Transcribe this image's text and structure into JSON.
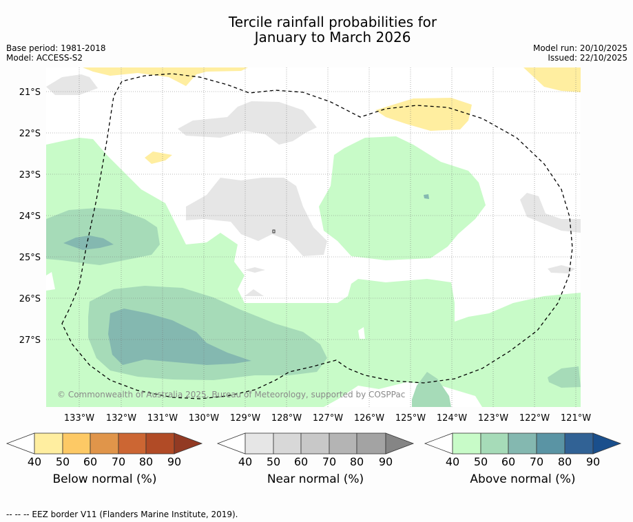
{
  "title": {
    "line1": "Tercile rainfall probabilities for",
    "line2": "January to March 2026"
  },
  "meta": {
    "base_period": "Base period: 1981-2018",
    "model": "Model: ACCESS-S2",
    "model_run": "Model run: 20/10/2025",
    "issued": "Issued: 22/10/2025"
  },
  "map": {
    "copyright": "© Commonwealth of Australia 2025, Bureau of Meteorology, supported by COSPPac",
    "lat_labels": [
      "21°S",
      "22°S",
      "23°S",
      "24°S",
      "25°S",
      "26°S",
      "27°S"
    ],
    "lon_labels": [
      "133°W",
      "132°W",
      "131°W",
      "130°W",
      "129°W",
      "128°W",
      "127°W",
      "126°W",
      "125°W",
      "124°W",
      "123°W",
      "122°W",
      "121°W"
    ],
    "lat_range": [
      -28.5,
      -20.4
    ],
    "lon_range": [
      -133.8,
      -120.9
    ]
  },
  "colorbars": {
    "ticks": [
      "40",
      "50",
      "60",
      "70",
      "80",
      "90"
    ],
    "below": {
      "label": "Below normal (%)",
      "colors": [
        "#ffeea0",
        "#fdc965",
        "#e0954a",
        "#cc6633",
        "#b14b26",
        "#923a23"
      ]
    },
    "near": {
      "label": "Near normal (%)",
      "colors": [
        "#e6e6e6",
        "#d8d8d8",
        "#c8c8c8",
        "#b4b4b4",
        "#a3a3a3",
        "#858585"
      ]
    },
    "above": {
      "label": "Above normal (%)",
      "colors": [
        "#c8fbc8",
        "#a6dbb8",
        "#84b8b0",
        "#5a94a4",
        "#316295",
        "#1a4f8c"
      ]
    }
  },
  "footer": "-- -- -- EEZ border V11 (Flanders Marine Institute, 2019)."
}
